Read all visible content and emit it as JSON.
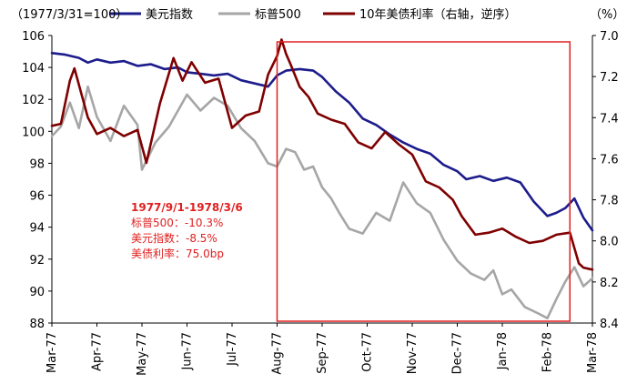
{
  "chart_data": {
    "type": "line",
    "title": "",
    "xlabel": "",
    "y_left_label": "（1977/3/31=100）",
    "y_right_label": "（%）",
    "y_left_lim": [
      88,
      106
    ],
    "y_left_ticks": [
      88,
      90,
      92,
      94,
      96,
      98,
      100,
      102,
      104,
      106
    ],
    "y_right_lim": [
      7.0,
      8.4
    ],
    "y_right_inverted": true,
    "y_right_ticks": [
      "7.0",
      "7.2",
      "7.4",
      "7.6",
      "7.8",
      "8.0",
      "8.2",
      "8.4"
    ],
    "x_lim": [
      0,
      12
    ],
    "x_ticks": [
      "Mar-77",
      "Apr-77",
      "May-77",
      "Jun-77",
      "Jul-77",
      "Aug-77",
      "Sep-77",
      "Oct-77",
      "Nov-77",
      "Dec-77",
      "Jan-78",
      "Feb-78",
      "Mar-78"
    ],
    "legend_position": "top",
    "series": [
      {
        "name": "美元指数",
        "axis": "left",
        "color": "#1c1c8c",
        "x": [
          0,
          0.3,
          0.6,
          0.8,
          1.0,
          1.3,
          1.6,
          1.9,
          2.2,
          2.5,
          2.8,
          3.0,
          3.3,
          3.6,
          3.9,
          4.2,
          4.5,
          4.8,
          5.0,
          5.2,
          5.5,
          5.8,
          6.0,
          6.3,
          6.6,
          6.9,
          7.2,
          7.5,
          7.8,
          8.1,
          8.4,
          8.7,
          9.0,
          9.2,
          9.5,
          9.8,
          10.1,
          10.4,
          10.7,
          11.0,
          11.2,
          11.4,
          11.6,
          11.8,
          12.0
        ],
        "values": [
          104.9,
          104.8,
          104.6,
          104.3,
          104.5,
          104.3,
          104.4,
          104.1,
          104.2,
          103.9,
          104.0,
          103.7,
          103.6,
          103.5,
          103.6,
          103.2,
          103.0,
          102.8,
          103.5,
          103.8,
          103.9,
          103.8,
          103.4,
          102.5,
          101.8,
          100.8,
          100.4,
          99.8,
          99.3,
          98.9,
          98.6,
          97.9,
          97.5,
          97.0,
          97.2,
          96.9,
          97.1,
          96.8,
          95.6,
          94.7,
          94.9,
          95.2,
          95.8,
          94.6,
          93.8
        ]
      },
      {
        "name": "标普500",
        "axis": "left",
        "color": "#a6a6a6",
        "x": [
          0,
          0.2,
          0.4,
          0.6,
          0.8,
          1.0,
          1.3,
          1.6,
          1.9,
          2.0,
          2.3,
          2.6,
          3.0,
          3.3,
          3.6,
          3.9,
          4.2,
          4.5,
          4.8,
          5.0,
          5.2,
          5.4,
          5.6,
          5.8,
          6.0,
          6.2,
          6.4,
          6.6,
          6.9,
          7.2,
          7.5,
          7.8,
          8.1,
          8.4,
          8.7,
          9.0,
          9.3,
          9.6,
          9.8,
          10.0,
          10.2,
          10.5,
          10.8,
          11.0,
          11.2,
          11.4,
          11.6,
          11.8,
          12.0
        ],
        "values": [
          99.7,
          100.3,
          101.8,
          100.2,
          102.8,
          100.9,
          99.4,
          101.6,
          100.4,
          97.6,
          99.3,
          100.3,
          102.3,
          101.3,
          102.1,
          101.6,
          100.2,
          99.4,
          98.0,
          97.8,
          98.9,
          98.7,
          97.6,
          97.8,
          96.5,
          95.8,
          94.8,
          93.9,
          93.6,
          94.9,
          94.4,
          96.8,
          95.5,
          94.9,
          93.2,
          91.9,
          91.1,
          90.7,
          91.3,
          89.8,
          90.1,
          89.0,
          88.6,
          88.3,
          89.5,
          90.6,
          91.5,
          90.3,
          90.8
        ]
      },
      {
        "name": "10年美债利率（右轴，逆序）",
        "axis": "right",
        "color": "#7f0000",
        "x": [
          0,
          0.2,
          0.4,
          0.5,
          0.8,
          1.0,
          1.3,
          1.6,
          1.9,
          2.1,
          2.4,
          2.7,
          2.9,
          3.1,
          3.4,
          3.7,
          4.0,
          4.3,
          4.6,
          4.8,
          5.0,
          5.1,
          5.2,
          5.3,
          5.5,
          5.7,
          5.9,
          6.2,
          6.5,
          6.8,
          7.1,
          7.4,
          7.7,
          8.0,
          8.3,
          8.6,
          8.9,
          9.1,
          9.4,
          9.7,
          10.0,
          10.3,
          10.6,
          10.9,
          11.2,
          11.5,
          11.7,
          11.8,
          12.0
        ],
        "values": [
          7.44,
          7.43,
          7.22,
          7.16,
          7.4,
          7.48,
          7.45,
          7.49,
          7.46,
          7.62,
          7.33,
          7.11,
          7.22,
          7.13,
          7.23,
          7.21,
          7.45,
          7.39,
          7.37,
          7.19,
          7.1,
          7.02,
          7.09,
          7.14,
          7.25,
          7.3,
          7.38,
          7.41,
          7.43,
          7.52,
          7.55,
          7.47,
          7.53,
          7.58,
          7.71,
          7.74,
          7.8,
          7.88,
          7.97,
          7.96,
          7.94,
          7.98,
          8.01,
          8.0,
          7.97,
          7.96,
          8.11,
          8.13,
          8.14
        ]
      }
    ],
    "highlight": {
      "x_range": [
        5.0,
        11.5
      ],
      "border_color": "#e02020"
    },
    "annotation": {
      "title": "1977/9/1-1978/3/6",
      "lines": [
        "标普500：-10.3%",
        "美元指数：-8.5%",
        "美债利率：75.0bp"
      ],
      "color": "#e02020"
    }
  }
}
